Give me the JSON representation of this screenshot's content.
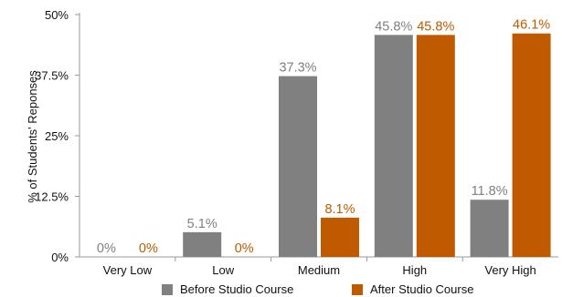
{
  "chart_data": {
    "type": "bar",
    "categories": [
      "Very Low",
      "Low",
      "Medium",
      "High",
      "Very High"
    ],
    "series": [
      {
        "name": "Before Studio Course",
        "values": [
          0,
          5.1,
          37.3,
          45.8,
          11.8
        ],
        "labels": [
          "0%",
          "5.1%",
          "37.3%",
          "45.8%",
          "11.8%"
        ],
        "color": "#808080"
      },
      {
        "name": "After Studio Course",
        "values": [
          0,
          0,
          8.1,
          45.8,
          46.1
        ],
        "labels": [
          "0%",
          "0%",
          "8.1%",
          "45.8%",
          "46.1%"
        ],
        "color": "#c05a00"
      }
    ],
    "ylabel": "% of Students' Reponses",
    "xlabel": "",
    "ylim": [
      0,
      50
    ],
    "yticks": [
      0,
      12.5,
      25,
      37.5,
      50
    ],
    "ytick_labels": [
      "0%",
      "12.5%",
      "25%",
      "37.5%",
      "50%"
    ],
    "grid": false,
    "legend_position": "bottom"
  }
}
